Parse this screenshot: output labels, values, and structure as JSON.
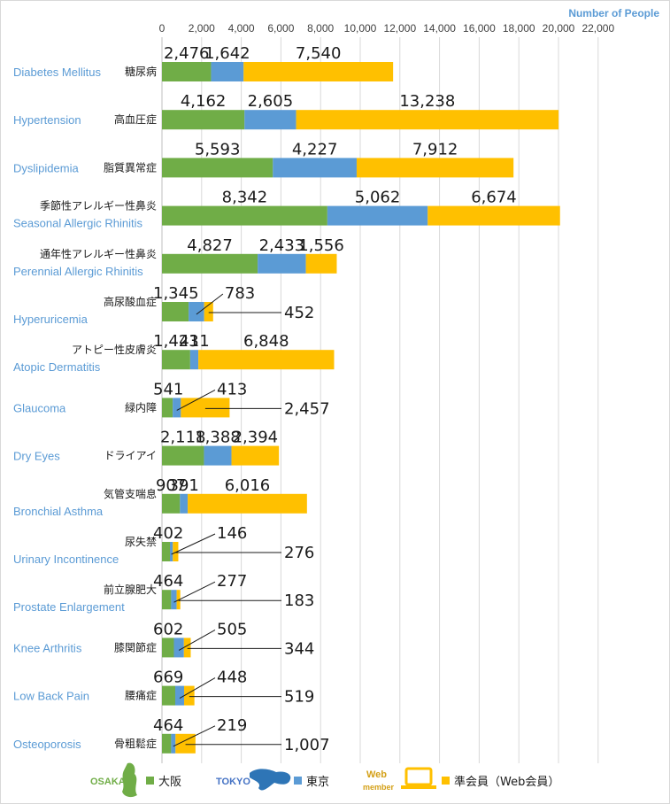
{
  "chart_data": {
    "type": "bar",
    "orientation": "horizontal",
    "stacked": true,
    "xlabel": "Number of People",
    "xlim": [
      0,
      22000
    ],
    "xticks": [
      "0",
      "2,000",
      "4,000",
      "6,000",
      "8,000",
      "10,000",
      "12,000",
      "14,000",
      "16,000",
      "18,000",
      "20,000",
      "22,000"
    ],
    "grid": true,
    "legend_position": "bottom",
    "categories": [
      {
        "en": "Diabetes Mellitus",
        "jp": "糖尿病"
      },
      {
        "en": "Hypertension",
        "jp": "高血圧症"
      },
      {
        "en": "Dyslipidemia",
        "jp": "脂質異常症"
      },
      {
        "en": "Seasonal Allergic Rhinitis",
        "jp": "季節性アレルギー性鼻炎"
      },
      {
        "en": "Perennial Allergic Rhinitis",
        "jp": "通年性アレルギー性鼻炎"
      },
      {
        "en": "Hyperuricemia",
        "jp": "高尿酸血症"
      },
      {
        "en": "Atopic Dermatitis",
        "jp": "アトピー性皮膚炎"
      },
      {
        "en": "Glaucoma",
        "jp": "緑内障"
      },
      {
        "en": "Dry Eyes",
        "jp": "ドライアイ"
      },
      {
        "en": "Bronchial Asthma",
        "jp": "気管支喘息"
      },
      {
        "en": "Urinary Incontinence",
        "jp": "尿失禁"
      },
      {
        "en": "Prostate Enlargement",
        "jp": "前立腺肥大"
      },
      {
        "en": "Knee Arthritis",
        "jp": "膝関節症"
      },
      {
        "en": "Low Back Pain",
        "jp": "腰痛症"
      },
      {
        "en": "Osteoporosis",
        "jp": "骨粗鬆症"
      }
    ],
    "series": [
      {
        "name": "大阪",
        "color": "#70ad47",
        "values": [
          2476,
          4162,
          5593,
          8342,
          4827,
          1345,
          1423,
          541,
          2118,
          907,
          402,
          464,
          602,
          669,
          464
        ],
        "labels": [
          "2,476",
          "4,162",
          "5,593",
          "8,342",
          "4,827",
          "1,345",
          "1,423",
          "541",
          "2,118",
          "907",
          "402",
          "464",
          "602",
          "669",
          "464"
        ]
      },
      {
        "name": "東京",
        "color": "#5b9bd5",
        "values": [
          1642,
          2605,
          4227,
          5062,
          2433,
          783,
          411,
          413,
          1388,
          391,
          146,
          277,
          505,
          448,
          219
        ],
        "labels": [
          "1,642",
          "2,605",
          "4,227",
          "5,062",
          "2,433",
          "783",
          "411",
          "413",
          "1,388",
          "391",
          "146",
          "277",
          "505",
          "448",
          "219"
        ]
      },
      {
        "name": "準会員（Web会員）",
        "color": "#ffc000",
        "values": [
          7540,
          13238,
          7912,
          6674,
          1556,
          452,
          6848,
          2457,
          2394,
          6016,
          276,
          183,
          344,
          519,
          1007
        ],
        "labels": [
          "7,540",
          "13,238",
          "7,912",
          "6,674",
          "1,556",
          "452",
          "6,848",
          "2,457",
          "2,394",
          "6,016",
          "276",
          "183",
          "344",
          "519",
          "1,007"
        ]
      }
    ]
  },
  "legend": {
    "osaka_logo_text": "OSAKA",
    "tokyo_logo_text": "TOKYO",
    "web_logo_text": "Web",
    "web_logo_sub": "member",
    "osaka_icon": "osaka-map-icon",
    "tokyo_icon": "tokyo-map-icon",
    "web_icon": "laptop-icon"
  }
}
